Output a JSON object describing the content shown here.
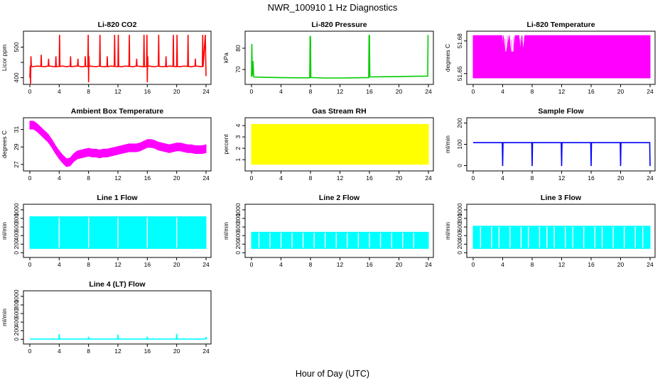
{
  "title": "NWR_100910  1 Hz Diagnostics",
  "xlabel": "Hour of Day (UTC)",
  "chart_data": [
    {
      "id": "co2",
      "type": "line",
      "title": "Li-820 CO2",
      "ylabel": "Licor ppm",
      "color": "#ff0000",
      "xlim": [
        0,
        24
      ],
      "ylim": [
        385,
        545
      ],
      "xticks": [
        0,
        4,
        8,
        12,
        16,
        20,
        24
      ],
      "yticks": [
        400,
        450,
        500
      ],
      "ytick_labels": [
        "400",
        "",
        "500"
      ],
      "series": [
        {
          "x": [
            0,
            0.05,
            0.1,
            0.15,
            0.2,
            0.3,
            1,
            1.5,
            1.55,
            1.6,
            2,
            2.5,
            2.55,
            2.6,
            3,
            3.5,
            3.55,
            3.6,
            4,
            4.05,
            4.1,
            4.5,
            5,
            5.5,
            5.55,
            5.6,
            6,
            6.5,
            6.55,
            6.6,
            7,
            7.5,
            7.55,
            7.6,
            7.9,
            7.95,
            8,
            8.05,
            8.1,
            8.5,
            9,
            9.5,
            9.55,
            9.6,
            10,
            10.5,
            10.55,
            10.6,
            11,
            11.5,
            11.55,
            11.6,
            12,
            12.05,
            12.1,
            12.5,
            13,
            13.5,
            13.55,
            13.6,
            14,
            14.5,
            14.55,
            14.6,
            15,
            15.5,
            15.55,
            15.6,
            15.9,
            15.95,
            16,
            16.05,
            16.1,
            16.5,
            17,
            17.5,
            17.55,
            17.6,
            18,
            18.5,
            18.55,
            18.6,
            19,
            19.5,
            19.55,
            19.6,
            20,
            20.05,
            20.1,
            20.5,
            21,
            21.5,
            21.55,
            21.6,
            22,
            22.5,
            22.55,
            22.6,
            23,
            23.5,
            23.55,
            23.6,
            23.9,
            23.95,
            24
          ],
          "y": [
            400,
            438,
            380,
            470,
            440,
            436,
            438,
            437,
            475,
            437,
            436,
            438,
            462,
            438,
            437,
            436,
            470,
            436,
            437,
            540,
            437,
            438,
            436,
            438,
            470,
            436,
            437,
            438,
            462,
            438,
            436,
            437,
            470,
            437,
            436,
            540,
            385,
            470,
            438,
            437,
            436,
            438,
            540,
            437,
            436,
            437,
            470,
            436,
            438,
            437,
            540,
            437,
            436,
            540,
            437,
            436,
            438,
            437,
            540,
            437,
            436,
            438,
            462,
            438,
            437,
            436,
            540,
            436,
            437,
            540,
            385,
            470,
            438,
            437,
            436,
            438,
            540,
            437,
            436,
            437,
            470,
            436,
            438,
            437,
            540,
            437,
            436,
            540,
            437,
            436,
            438,
            437,
            540,
            437,
            436,
            438,
            462,
            438,
            437,
            436,
            540,
            436,
            540,
            470,
            405
          ]
        }
      ]
    },
    {
      "id": "pressure",
      "type": "line",
      "title": "Li-820 Pressure",
      "ylabel": "kPa",
      "color": "#00cc00",
      "xlim": [
        0,
        24
      ],
      "ylim": [
        64,
        87
      ],
      "xticks": [
        0,
        4,
        8,
        12,
        16,
        20,
        24
      ],
      "yticks": [
        70,
        80
      ],
      "ytick_labels": [
        "70",
        "80"
      ],
      "series": [
        {
          "x": [
            0,
            0.05,
            0.1,
            0.2,
            0.3,
            2,
            4,
            6,
            7.9,
            7.95,
            8,
            8.05,
            8.1,
            10,
            12,
            14,
            15.9,
            15.95,
            16,
            16.05,
            16.1,
            18,
            20,
            22,
            23.9,
            23.95,
            24
          ],
          "y": [
            66.5,
            82,
            67,
            74,
            66.5,
            66.3,
            66.2,
            66.1,
            66.1,
            85.5,
            85.5,
            66.5,
            66.2,
            66.0,
            66.0,
            66.1,
            66.2,
            86,
            86,
            66.8,
            66.5,
            66.6,
            66.7,
            66.8,
            66.9,
            86,
            86
          ]
        }
      ]
    },
    {
      "id": "licor-temp",
      "type": "line",
      "title": "Li-820 Temperature",
      "ylabel": "degrees C",
      "color": "#ff00ff",
      "xlim": [
        0,
        24
      ],
      "ylim": [
        51.642,
        51.687
      ],
      "xticks": [
        0,
        4,
        8,
        12,
        16,
        20,
        24
      ],
      "yticks": [
        51.65,
        51.68
      ],
      "ytick_labels": [
        "51.65",
        "51.68"
      ],
      "series": [
        {
          "x": [
            0,
            3.9,
            4.0,
            4.1,
            4.3,
            4.5,
            4.9,
            5.1,
            5.5,
            5.7,
            6.2,
            6.4,
            6.6,
            6.8,
            7.0,
            24
          ],
          "y_max": [
            51.685,
            51.685,
            51.67,
            51.685,
            51.67,
            51.67,
            51.685,
            51.67,
            51.67,
            51.685,
            51.685,
            51.67,
            51.685,
            51.67,
            51.685,
            51.685
          ],
          "y_min": [
            51.646,
            51.646,
            51.646,
            51.646,
            51.646,
            51.646,
            51.646,
            51.646,
            51.646,
            51.646,
            51.646,
            51.646,
            51.646,
            51.646,
            51.646,
            51.646
          ]
        }
      ]
    },
    {
      "id": "ambient-temp",
      "type": "line",
      "title": "Ambient Box Temperature",
      "ylabel": "degrees C",
      "color": "#ff00ff",
      "xlim": [
        0,
        24
      ],
      "ylim": [
        26.5,
        32.1
      ],
      "xticks": [
        0,
        4,
        8,
        12,
        16,
        20,
        24
      ],
      "yticks": [
        27,
        29,
        31
      ],
      "ytick_labels": [
        "27",
        "29",
        "31"
      ],
      "series": [
        {
          "x": [
            0,
            0.5,
            1,
            1.5,
            2,
            2.5,
            3,
            3.5,
            4,
            4.5,
            5,
            5.5,
            6,
            6.5,
            7,
            7.5,
            8,
            8.5,
            9,
            9.5,
            10,
            10.5,
            11,
            11.5,
            12,
            12.5,
            13,
            13.5,
            14,
            14.5,
            15,
            15.5,
            16,
            16.5,
            17,
            17.5,
            18,
            18.5,
            19,
            19.5,
            20,
            20.5,
            21,
            21.5,
            22,
            22.5,
            23,
            23.5,
            24
          ],
          "y": [
            31.5,
            31.5,
            31.2,
            30.8,
            30.4,
            30.0,
            29.4,
            28.7,
            28.1,
            27.6,
            27.2,
            27.3,
            27.8,
            28.1,
            28.2,
            28.3,
            28.4,
            28.3,
            28.3,
            28.2,
            28.3,
            28.3,
            28.4,
            28.5,
            28.6,
            28.7,
            28.8,
            28.9,
            28.9,
            28.9,
            29.0,
            29.2,
            29.4,
            29.4,
            29.3,
            29.1,
            29.0,
            28.9,
            28.8,
            28.9,
            29.0,
            29.0,
            28.9,
            28.8,
            28.8,
            28.7,
            28.7,
            28.7,
            28.8
          ],
          "band": 0.45
        }
      ]
    },
    {
      "id": "gas-rh",
      "type": "area",
      "title": "Gas Stream RH",
      "ylabel": "percent",
      "color": "#ffff00",
      "xlim": [
        0,
        24
      ],
      "ylim": [
        0.2,
        4.5
      ],
      "xticks": [
        0,
        4,
        8,
        12,
        16,
        20,
        24
      ],
      "yticks": [
        1,
        2,
        3,
        4
      ],
      "ytick_labels": [
        "1",
        "2",
        "3",
        "4"
      ],
      "series": [
        {
          "x": [
            0,
            24
          ],
          "y_max": [
            4.1,
            4.1
          ],
          "y_min": [
            0.6,
            0.6
          ]
        }
      ]
    },
    {
      "id": "sample-flow",
      "type": "line",
      "title": "Sample Flow",
      "ylabel": "ml/min",
      "color": "#0000ff",
      "xlim": [
        0,
        24
      ],
      "ylim": [
        -15,
        215
      ],
      "xticks": [
        0,
        4,
        8,
        12,
        16,
        20,
        24
      ],
      "yticks": [
        0,
        100,
        200
      ],
      "ytick_labels": [
        "0",
        "100",
        "200"
      ],
      "series": [
        {
          "x": [
            0,
            3.9,
            3.95,
            4.0,
            4.05,
            4.1,
            7.9,
            7.95,
            8.0,
            8.05,
            8.1,
            11.9,
            11.95,
            12.0,
            12.05,
            12.1,
            15.9,
            15.95,
            16.0,
            16.05,
            16.1,
            19.9,
            19.95,
            20.0,
            20.05,
            20.1,
            23.9,
            23.95,
            24
          ],
          "y": [
            108,
            108,
            108,
            -2,
            108,
            108,
            108,
            108,
            -2,
            108,
            108,
            108,
            108,
            -2,
            108,
            108,
            108,
            108,
            -2,
            108,
            108,
            108,
            108,
            -2,
            108,
            108,
            108,
            108,
            -2
          ]
        }
      ]
    },
    {
      "id": "line1-flow",
      "type": "area",
      "title": "Line 1 Flow",
      "ylabel": "ml/min",
      "color": "#00ffff",
      "xlim": [
        0,
        24
      ],
      "ylim": [
        -60,
        1080
      ],
      "xticks": [
        0,
        4,
        8,
        12,
        16,
        20,
        24
      ],
      "yticks": [
        0,
        200,
        400,
        600,
        800,
        1000
      ],
      "ytick_labels": [
        "0",
        "200",
        "400",
        "600",
        "800",
        "1000"
      ],
      "series": [
        {
          "x": [
            0,
            24
          ],
          "y_max": [
            840,
            840
          ],
          "y_min": [
            100,
            100
          ],
          "gaps": [
            4,
            8,
            12,
            16,
            20
          ]
        }
      ]
    },
    {
      "id": "line2-flow",
      "type": "area",
      "title": "Line 2 Flow",
      "ylabel": "ml/min",
      "color": "#00ffff",
      "xlim": [
        0,
        24
      ],
      "ylim": [
        -60,
        1080
      ],
      "xticks": [
        0,
        4,
        8,
        12,
        16,
        20,
        24
      ],
      "yticks": [
        0,
        200,
        400,
        600,
        800,
        1000
      ],
      "ytick_labels": [
        "0",
        "200",
        "400",
        "600",
        "800",
        "1000"
      ],
      "series": [
        {
          "x": [
            0,
            24
          ],
          "y_max": [
            480,
            480
          ],
          "y_min": [
            100,
            100
          ],
          "gaps": [
            1,
            2.5,
            4,
            5.5,
            7,
            8.5,
            10,
            11.5,
            13,
            14.5,
            16,
            17.5,
            19,
            20.5,
            22
          ]
        }
      ]
    },
    {
      "id": "line3-flow",
      "type": "area",
      "title": "Line 3 Flow",
      "ylabel": "ml/min",
      "color": "#00ffff",
      "xlim": [
        0,
        24
      ],
      "ylim": [
        -60,
        1080
      ],
      "xticks": [
        0,
        4,
        8,
        12,
        16,
        20,
        24
      ],
      "yticks": [
        0,
        200,
        400,
        600,
        800,
        1000
      ],
      "ytick_labels": [
        "0",
        "200",
        "400",
        "600",
        "800",
        "1000"
      ],
      "series": [
        {
          "x": [
            0,
            24
          ],
          "y_max": [
            620,
            620
          ],
          "y_min": [
            100,
            100
          ],
          "gaps": [
            1,
            2.5,
            3.5,
            5,
            6.5,
            7.5,
            9,
            10,
            11,
            12.5,
            13.5,
            15,
            16.5,
            17.5,
            19,
            20.5,
            22,
            23
          ]
        }
      ]
    },
    {
      "id": "line4-flow",
      "type": "line",
      "title": "Line 4 (LT) Flow",
      "ylabel": "ml/min",
      "color": "#00ffff",
      "xlim": [
        0,
        24
      ],
      "ylim": [
        -60,
        1080
      ],
      "xticks": [
        0,
        4,
        8,
        12,
        16,
        20,
        24
      ],
      "yticks": [
        0,
        200,
        400,
        600,
        800,
        1000
      ],
      "ytick_labels": [
        "0",
        "200",
        "400",
        "600",
        "800",
        "1000"
      ],
      "series": [
        {
          "x": [
            0,
            3.95,
            4.0,
            4.05,
            7.95,
            8.0,
            8.05,
            11.95,
            12.0,
            12.05,
            15.95,
            16.0,
            16.05,
            19.95,
            20.0,
            20.05,
            23.95,
            24.0,
            24.05
          ],
          "y": [
            5,
            5,
            120,
            5,
            5,
            60,
            5,
            5,
            110,
            5,
            5,
            60,
            5,
            5,
            130,
            5,
            5,
            55,
            5
          ]
        }
      ]
    }
  ]
}
